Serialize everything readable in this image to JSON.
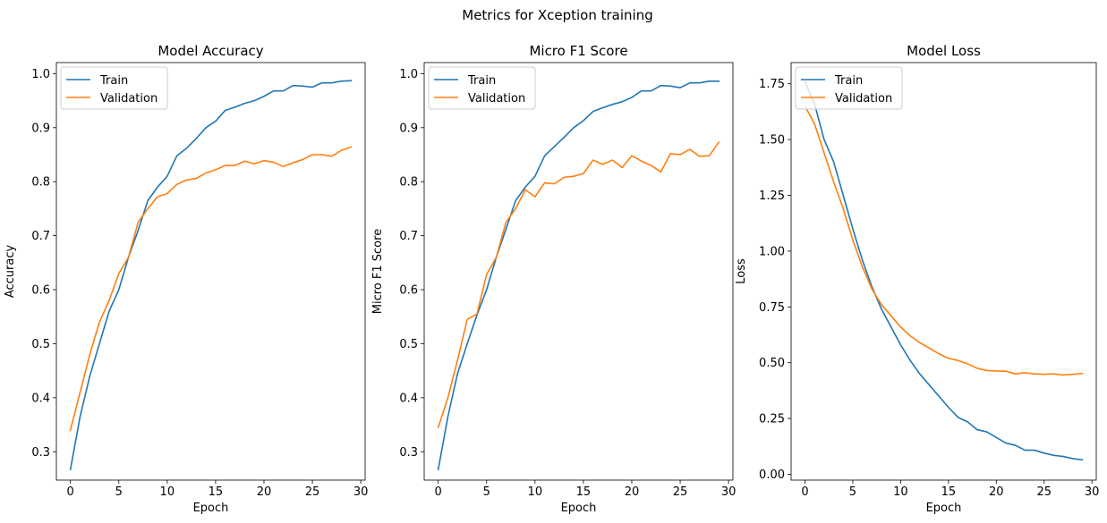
{
  "suptitle": "Metrics for Xception training",
  "colors": {
    "train": "#1f77b4",
    "validation": "#ff7f0e"
  },
  "chart_data": [
    {
      "type": "line",
      "title": "Model Accuracy",
      "xlabel": "Epoch",
      "ylabel": "Accuracy",
      "xlim": [
        -1.45,
        30.45
      ],
      "ylim": [
        0.2475,
        1.0205
      ],
      "xticks": [
        0,
        5,
        10,
        15,
        20,
        25,
        30
      ],
      "yticks": [
        0.3,
        0.4,
        0.5,
        0.6,
        0.7,
        0.8,
        0.9,
        1.0
      ],
      "legend": "upper left",
      "x": [
        0,
        1,
        2,
        3,
        4,
        5,
        6,
        7,
        8,
        9,
        10,
        11,
        12,
        13,
        14,
        15,
        16,
        17,
        18,
        19,
        20,
        21,
        22,
        23,
        24,
        25,
        26,
        27,
        28,
        29
      ],
      "series": [
        {
          "name": "Train",
          "values": [
            0.267,
            0.365,
            0.44,
            0.5,
            0.56,
            0.6,
            0.66,
            0.71,
            0.765,
            0.79,
            0.81,
            0.848,
            0.862,
            0.88,
            0.9,
            0.912,
            0.932,
            0.938,
            0.945,
            0.95,
            0.958,
            0.968,
            0.968,
            0.978,
            0.977,
            0.975,
            0.983,
            0.983,
            0.986,
            0.987
          ]
        },
        {
          "name": "Validation",
          "values": [
            0.34,
            0.41,
            0.48,
            0.54,
            0.58,
            0.63,
            0.66,
            0.725,
            0.75,
            0.772,
            0.778,
            0.795,
            0.803,
            0.806,
            0.816,
            0.822,
            0.83,
            0.83,
            0.838,
            0.833,
            0.839,
            0.836,
            0.828,
            0.835,
            0.841,
            0.85,
            0.85,
            0.847,
            0.858,
            0.864
          ]
        }
      ]
    },
    {
      "type": "line",
      "title": "Micro F1 Score",
      "xlabel": "Epoch",
      "ylabel": "Micro F1 Score",
      "xlim": [
        -1.45,
        30.45
      ],
      "ylim": [
        0.2475,
        1.0205
      ],
      "xticks": [
        0,
        5,
        10,
        15,
        20,
        25,
        30
      ],
      "yticks": [
        0.3,
        0.4,
        0.5,
        0.6,
        0.7,
        0.8,
        0.9,
        1.0
      ],
      "legend": "upper left",
      "x": [
        0,
        1,
        2,
        3,
        4,
        5,
        6,
        7,
        8,
        9,
        10,
        11,
        12,
        13,
        14,
        15,
        16,
        17,
        18,
        19,
        20,
        21,
        22,
        23,
        24,
        25,
        26,
        27,
        28,
        29
      ],
      "series": [
        {
          "name": "Train",
          "values": [
            0.267,
            0.365,
            0.445,
            0.5,
            0.553,
            0.6,
            0.66,
            0.712,
            0.765,
            0.79,
            0.81,
            0.848,
            0.865,
            0.882,
            0.9,
            0.913,
            0.93,
            0.937,
            0.943,
            0.948,
            0.956,
            0.968,
            0.968,
            0.978,
            0.977,
            0.974,
            0.983,
            0.983,
            0.986,
            0.986
          ]
        },
        {
          "name": "Validation",
          "values": [
            0.345,
            0.4,
            0.47,
            0.545,
            0.555,
            0.628,
            0.66,
            0.725,
            0.75,
            0.785,
            0.772,
            0.798,
            0.796,
            0.808,
            0.81,
            0.815,
            0.84,
            0.832,
            0.84,
            0.826,
            0.848,
            0.838,
            0.83,
            0.818,
            0.852,
            0.85,
            0.86,
            0.847,
            0.848,
            0.873
          ]
        }
      ]
    },
    {
      "type": "line",
      "title": "Model Loss",
      "xlabel": "Epoch",
      "ylabel": "Loss",
      "xlim": [
        -1.45,
        30.45
      ],
      "ylim": [
        -0.026,
        1.845
      ],
      "xticks": [
        0,
        5,
        10,
        15,
        20,
        25,
        30
      ],
      "yticks": [
        0.0,
        0.25,
        0.5,
        0.75,
        1.0,
        1.25,
        1.5,
        1.75
      ],
      "ytick_labels": [
        "0.00",
        "0.25",
        "0.50",
        "0.75",
        "1.00",
        "1.25",
        "1.50",
        "1.75"
      ],
      "legend": "upper left",
      "x": [
        0,
        1,
        2,
        3,
        4,
        5,
        6,
        7,
        8,
        9,
        10,
        11,
        12,
        13,
        14,
        15,
        16,
        17,
        18,
        19,
        20,
        21,
        22,
        23,
        24,
        25,
        26,
        27,
        28,
        29
      ],
      "series": [
        {
          "name": "Train",
          "values": [
            1.76,
            1.66,
            1.5,
            1.4,
            1.25,
            1.1,
            0.96,
            0.84,
            0.74,
            0.66,
            0.58,
            0.51,
            0.45,
            0.4,
            0.35,
            0.3,
            0.255,
            0.235,
            0.2,
            0.19,
            0.165,
            0.14,
            0.13,
            0.108,
            0.108,
            0.095,
            0.085,
            0.08,
            0.07,
            0.065
          ]
        },
        {
          "name": "Validation",
          "values": [
            1.65,
            1.57,
            1.44,
            1.31,
            1.19,
            1.05,
            0.93,
            0.83,
            0.76,
            0.71,
            0.66,
            0.62,
            0.59,
            0.565,
            0.54,
            0.52,
            0.51,
            0.495,
            0.475,
            0.465,
            0.463,
            0.462,
            0.45,
            0.455,
            0.45,
            0.448,
            0.45,
            0.445,
            0.448,
            0.452
          ]
        }
      ]
    }
  ]
}
